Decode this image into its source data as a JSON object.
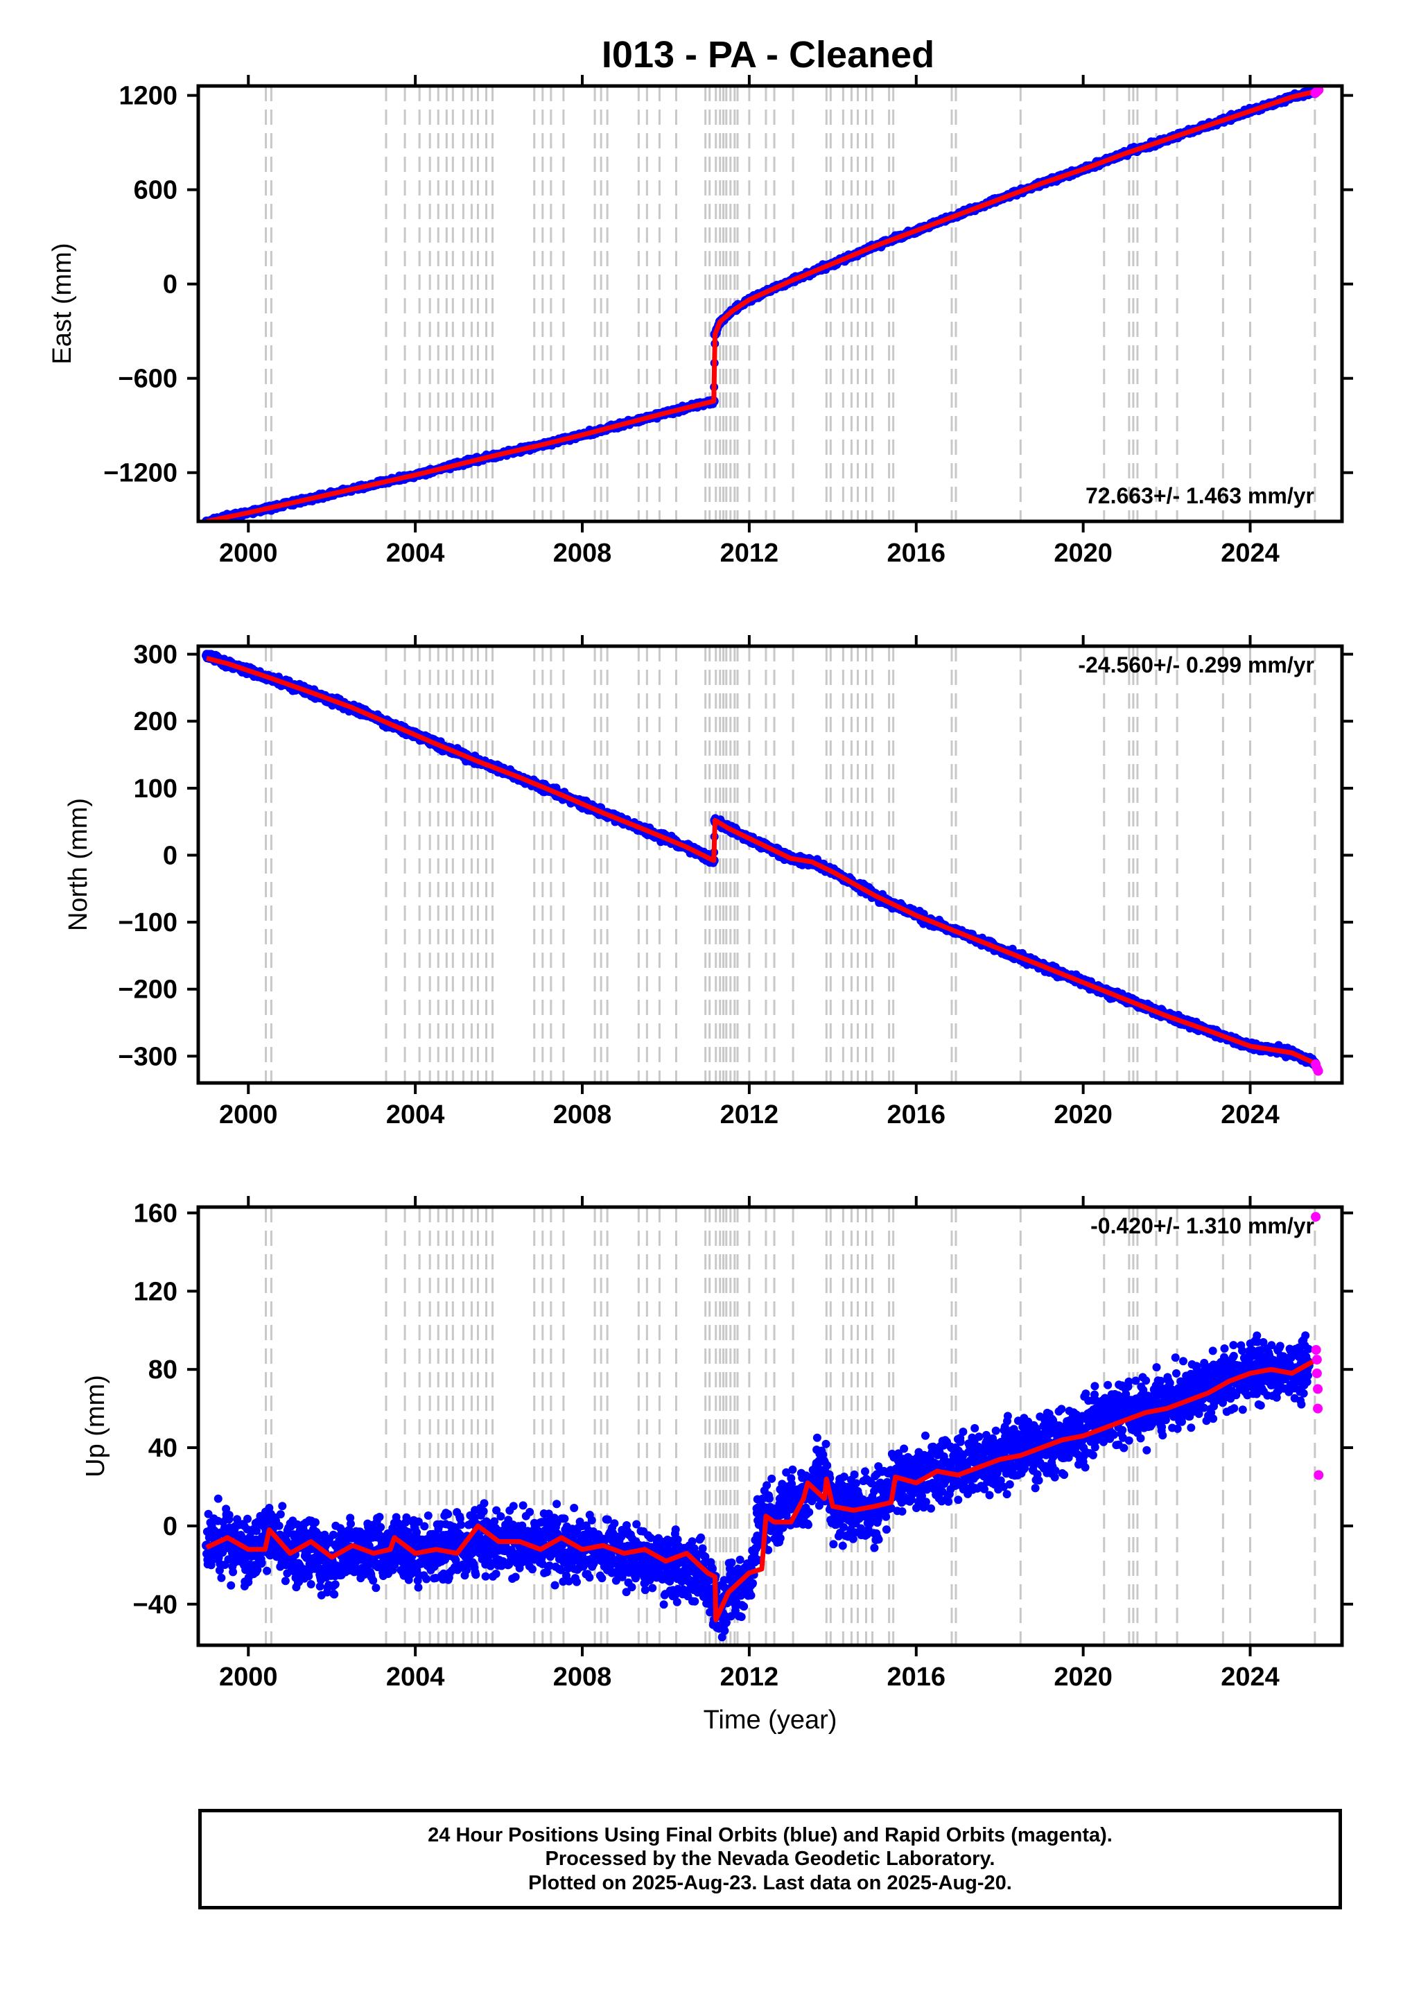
{
  "title": "I013  - PA - Cleaned",
  "colors": {
    "final_orbits": "#0000ff",
    "rapid_orbits": "#ff00ff",
    "model": "#ff0000",
    "steps": "#c8c8c8",
    "frame": "#000000"
  },
  "chart_data": [
    {
      "type": "scatter",
      "id": "east",
      "ylabel": "East (mm)",
      "xlabel": "",
      "xlim": [
        1998.8,
        2026.2
      ],
      "ylim": [
        -1510,
        1260
      ],
      "xticks": [
        2000,
        2004,
        2008,
        2012,
        2016,
        2020,
        2024
      ],
      "yticks": [
        -1200,
        -600,
        0,
        600,
        1200
      ],
      "ytick_labels": [
        "−1200",
        "−600",
        "0",
        "600",
        "1200"
      ],
      "xtick_labels": [
        "2000",
        "2004",
        "2008",
        "2012",
        "2016",
        "2020",
        "2024"
      ],
      "rate_label": "72.663+/- 1.463 mm/yr",
      "rate_position": "bottom-right",
      "grid": false,
      "series": [
        {
          "role": "final",
          "x": [
            1999.0,
            2000.0,
            2001.0,
            2002.0,
            2003.0,
            2004.0,
            2005.0,
            2006.0,
            2007.0,
            2008.0,
            2009.0,
            2010.0,
            2011.15,
            2011.18,
            2011.3,
            2011.6,
            2012.0,
            2012.5,
            2013.0,
            2014.0,
            2015.0,
            2016.0,
            2017.0,
            2018.0,
            2019.0,
            2020.0,
            2021.0,
            2022.0,
            2023.0,
            2024.0,
            2025.0,
            2025.55
          ],
          "y": [
            -1510,
            -1455,
            -1395,
            -1335,
            -1275,
            -1215,
            -1150,
            -1085,
            -1025,
            -960,
            -890,
            -820,
            -745,
            -320,
            -240,
            -170,
            -100,
            -40,
            20,
            130,
            240,
            340,
            440,
            540,
            640,
            730,
            830,
            920,
            1010,
            1100,
            1190,
            1225
          ]
        },
        {
          "role": "rapid",
          "x": [
            2025.56,
            2025.6,
            2025.64
          ],
          "y": [
            1215,
            1225,
            1235
          ]
        },
        {
          "role": "model",
          "x": [
            1999.0,
            2000.0,
            2001.0,
            2002.0,
            2003.0,
            2004.0,
            2005.0,
            2006.0,
            2007.0,
            2008.0,
            2009.0,
            2010.0,
            2011.15,
            2011.18,
            2011.3,
            2011.6,
            2012.0,
            2012.5,
            2013.0,
            2014.0,
            2015.0,
            2016.0,
            2017.0,
            2018.0,
            2019.0,
            2020.0,
            2021.0,
            2022.0,
            2023.0,
            2024.0,
            2025.0,
            2025.64
          ],
          "y": [
            -1510,
            -1455,
            -1395,
            -1335,
            -1275,
            -1215,
            -1150,
            -1085,
            -1025,
            -960,
            -890,
            -820,
            -745,
            -320,
            -240,
            -170,
            -100,
            -40,
            20,
            130,
            240,
            340,
            440,
            540,
            640,
            730,
            830,
            920,
            1010,
            1100,
            1190,
            1230
          ]
        }
      ]
    },
    {
      "type": "scatter",
      "id": "north",
      "ylabel": "North (mm)",
      "xlabel": "",
      "xlim": [
        1998.8,
        2026.2
      ],
      "ylim": [
        -340,
        312
      ],
      "xticks": [
        2000,
        2004,
        2008,
        2012,
        2016,
        2020,
        2024
      ],
      "yticks": [
        -300,
        -200,
        -100,
        0,
        100,
        200,
        300
      ],
      "ytick_labels": [
        "−300",
        "−200",
        "−100",
        "0",
        "100",
        "200",
        "300"
      ],
      "xtick_labels": [
        "2000",
        "2004",
        "2008",
        "2012",
        "2016",
        "2020",
        "2024"
      ],
      "rate_label": "-24.560+/- 0.299 mm/yr",
      "rate_position": "top-right",
      "grid": false,
      "series": [
        {
          "role": "final",
          "x": [
            1999.0,
            1999.5,
            2000.5,
            2001.5,
            2002.5,
            2003.5,
            2004.5,
            2005.5,
            2006.5,
            2007.5,
            2008.5,
            2009.5,
            2010.5,
            2011.15,
            2011.18,
            2011.5,
            2012.0,
            2012.5,
            2013.0,
            2013.5,
            2014.0,
            2015.0,
            2016.0,
            2017.0,
            2018.0,
            2019.0,
            2020.0,
            2021.0,
            2022.0,
            2023.0,
            2024.0,
            2025.0,
            2025.55
          ],
          "y": [
            298,
            286,
            265,
            243,
            220,
            193,
            166,
            140,
            116,
            90,
            63,
            38,
            12,
            -8,
            52,
            40,
            25,
            10,
            -5,
            -10,
            -25,
            -60,
            -90,
            -115,
            -140,
            -165,
            -190,
            -215,
            -240,
            -262,
            -285,
            -295,
            -310
          ]
        },
        {
          "role": "rapid",
          "x": [
            2025.57,
            2025.6,
            2025.63
          ],
          "y": [
            -312,
            -318,
            -322
          ]
        },
        {
          "role": "model",
          "x": [
            1999.0,
            1999.5,
            2000.5,
            2001.5,
            2002.5,
            2003.5,
            2004.5,
            2005.5,
            2006.5,
            2007.5,
            2008.5,
            2009.5,
            2010.5,
            2011.15,
            2011.18,
            2011.5,
            2012.0,
            2012.5,
            2013.0,
            2013.5,
            2014.0,
            2015.0,
            2016.0,
            2017.0,
            2018.0,
            2019.0,
            2020.0,
            2021.0,
            2022.0,
            2023.0,
            2024.0,
            2025.0,
            2025.6
          ],
          "y": [
            294,
            286,
            265,
            243,
            220,
            193,
            166,
            140,
            116,
            90,
            63,
            38,
            12,
            -8,
            52,
            40,
            25,
            10,
            -5,
            -10,
            -25,
            -60,
            -90,
            -115,
            -140,
            -165,
            -190,
            -215,
            -240,
            -262,
            -285,
            -295,
            -312
          ]
        }
      ]
    },
    {
      "type": "scatter",
      "id": "up",
      "ylabel": "Up (mm)",
      "xlabel": "Time (year)",
      "xlim": [
        1998.8,
        2026.2
      ],
      "ylim": [
        -61,
        163
      ],
      "xticks": [
        2000,
        2004,
        2008,
        2012,
        2016,
        2020,
        2024
      ],
      "yticks": [
        -40,
        0,
        40,
        80,
        120,
        160
      ],
      "ytick_labels": [
        "−40",
        "0",
        "40",
        "80",
        "120",
        "160"
      ],
      "xtick_labels": [
        "2000",
        "2004",
        "2008",
        "2012",
        "2016",
        "2020",
        "2024"
      ],
      "rate_label": "-0.420+/- 1.310 mm/yr",
      "rate_position": "top-right",
      "grid": false,
      "series": [
        {
          "role": "final",
          "x": [
            1999.0,
            1999.5,
            2000.0,
            2000.5,
            2001.0,
            2001.5,
            2002.0,
            2002.5,
            2003.0,
            2003.5,
            2004.0,
            2004.5,
            2005.0,
            2005.5,
            2006.0,
            2006.5,
            2007.0,
            2007.5,
            2008.0,
            2008.5,
            2009.0,
            2009.5,
            2010.0,
            2010.5,
            2011.0,
            2011.2,
            2011.5,
            2012.0,
            2012.3,
            2012.6,
            2013.0,
            2013.5,
            2013.8,
            2014.0,
            2014.5,
            2015.0,
            2015.5,
            2016.0,
            2016.5,
            2017.0,
            2017.5,
            2018.0,
            2018.5,
            2019.0,
            2019.5,
            2020.0,
            2020.5,
            2021.0,
            2021.5,
            2022.0,
            2022.5,
            2023.0,
            2023.5,
            2024.0,
            2024.5,
            2025.0,
            2025.4
          ],
          "y": [
            -10,
            -8,
            -12,
            -5,
            -15,
            -10,
            -18,
            -12,
            -15,
            -10,
            -12,
            -14,
            -10,
            -8,
            -10,
            -8,
            -9,
            -10,
            -12,
            -10,
            -15,
            -16,
            -20,
            -22,
            -28,
            -45,
            -35,
            -25,
            5,
            5,
            10,
            20,
            28,
            10,
            8,
            8,
            22,
            25,
            26,
            28,
            32,
            35,
            38,
            40,
            45,
            48,
            55,
            58,
            60,
            63,
            65,
            70,
            75,
            80,
            78,
            80,
            82
          ]
        },
        {
          "role": "rapid",
          "x": [
            2025.57,
            2025.58,
            2025.6,
            2025.6,
            2025.62,
            2025.62,
            2025.64
          ],
          "y": [
            158,
            90,
            85,
            78,
            70,
            60,
            26
          ]
        },
        {
          "role": "model",
          "x": [
            1999.0,
            1999.5,
            2000.0,
            2000.4,
            2000.5,
            2001.0,
            2001.5,
            2002.0,
            2002.5,
            2003.0,
            2003.4,
            2003.5,
            2004.0,
            2004.5,
            2005.0,
            2005.5,
            2006.0,
            2006.5,
            2007.0,
            2007.5,
            2008.0,
            2008.5,
            2009.0,
            2009.5,
            2010.0,
            2010.5,
            2011.0,
            2011.18,
            2011.2,
            2011.5,
            2012.0,
            2012.3,
            2012.4,
            2012.6,
            2013.0,
            2013.3,
            2013.4,
            2013.8,
            2013.85,
            2014.0,
            2014.5,
            2015.0,
            2015.4,
            2015.5,
            2016.0,
            2016.5,
            2017.0,
            2017.5,
            2018.0,
            2018.5,
            2019.0,
            2019.5,
            2020.0,
            2020.5,
            2021.0,
            2021.5,
            2022.0,
            2022.5,
            2023.0,
            2023.5,
            2024.0,
            2024.5,
            2025.0,
            2025.5,
            2025.64
          ],
          "y": [
            -11,
            -6,
            -12,
            -12,
            -2,
            -14,
            -8,
            -16,
            -10,
            -14,
            -12,
            -6,
            -14,
            -12,
            -14,
            0,
            -8,
            -8,
            -12,
            -6,
            -12,
            -10,
            -14,
            -12,
            -18,
            -14,
            -24,
            -26,
            -48,
            -34,
            -24,
            -22,
            5,
            2,
            2,
            14,
            22,
            14,
            24,
            10,
            8,
            10,
            12,
            25,
            22,
            28,
            26,
            30,
            34,
            36,
            40,
            44,
            46,
            50,
            54,
            58,
            60,
            64,
            68,
            74,
            78,
            80,
            78,
            84,
            86
          ]
        }
      ]
    }
  ],
  "step_times": [
    2000.42,
    2000.55,
    2003.3,
    2003.75,
    2004.1,
    2004.35,
    2004.55,
    2004.75,
    2004.9,
    2005.15,
    2005.35,
    2005.5,
    2005.7,
    2005.85,
    2006.85,
    2007.05,
    2007.25,
    2007.55,
    2008.3,
    2008.45,
    2008.6,
    2009.35,
    2009.55,
    2009.85,
    2010.25,
    2010.95,
    2011.05,
    2011.2,
    2011.3,
    2011.38,
    2011.45,
    2011.55,
    2011.65,
    2011.72,
    2012.0,
    2012.4,
    2012.6,
    2013.05,
    2013.85,
    2013.95,
    2014.25,
    2014.45,
    2014.6,
    2014.8,
    2014.95,
    2015.35,
    2015.45,
    2016.85,
    2016.95,
    2018.5,
    2020.5,
    2021.1,
    2021.2,
    2021.3,
    2021.75,
    2022.25,
    2023.35,
    2024.0,
    2025.55
  ],
  "footer": {
    "line1": "24 Hour Positions Using Final Orbits (blue) and Rapid Orbits (magenta).",
    "line2": "Processed by the Nevada Geodetic Laboratory.",
    "line3": "Plotted on 2025-Aug-23. Last data on 2025-Aug-20."
  }
}
